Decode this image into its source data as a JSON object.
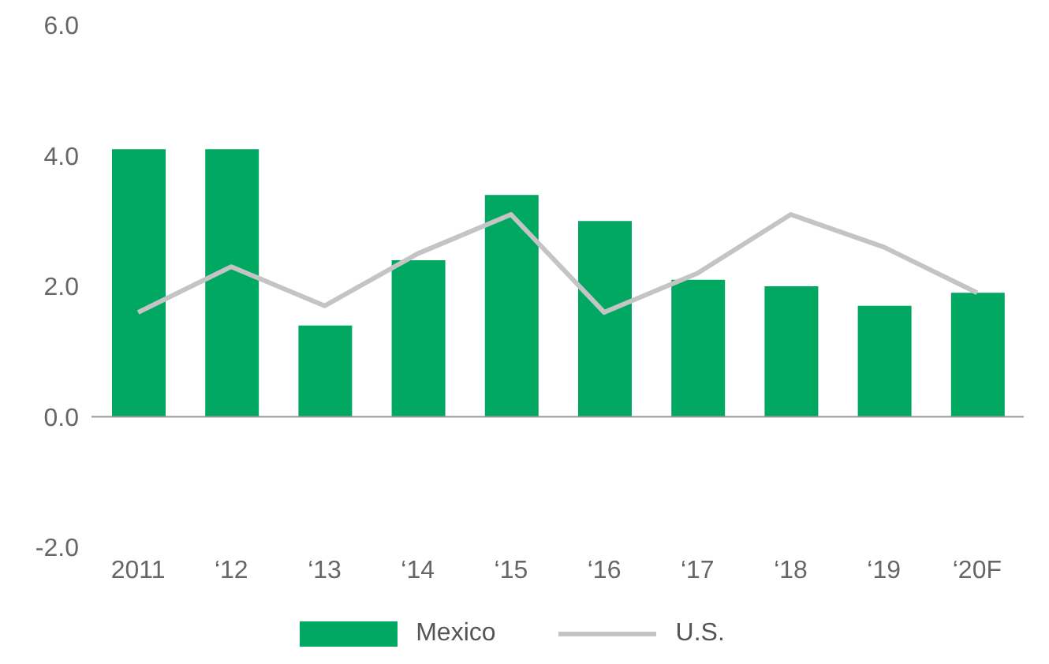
{
  "chart_data": {
    "type": "bar",
    "categories": [
      "2011",
      "‘12",
      "‘13",
      "‘14",
      "‘15",
      "‘16",
      "‘17",
      "‘18",
      "‘19",
      "‘20F"
    ],
    "series": [
      {
        "name": "Mexico",
        "color": "#00a862",
        "values": [
          4.1,
          4.1,
          1.4,
          2.4,
          3.4,
          3.0,
          2.1,
          2.0,
          1.7,
          1.9
        ]
      },
      {
        "name": "U.S.",
        "type": "line",
        "color": "#c4c4c4",
        "values": [
          1.6,
          2.3,
          1.7,
          2.5,
          3.1,
          1.6,
          2.2,
          3.1,
          2.6,
          1.9
        ]
      }
    ],
    "ylim": [
      -2.0,
      6.0
    ],
    "yticks": [
      {
        "value": -2,
        "label": "-2.0"
      },
      {
        "value": 0,
        "label": "0.0"
      },
      {
        "value": 2,
        "label": "2.0"
      },
      {
        "value": 4,
        "label": "4.0"
      },
      {
        "value": 6,
        "label": "6.0"
      }
    ],
    "ref_lines": [
      {
        "axis": "y",
        "value": 0,
        "color": "#999999"
      }
    ],
    "grid": false,
    "legend": "bottom",
    "marker": "none",
    "line_style": "solid"
  }
}
